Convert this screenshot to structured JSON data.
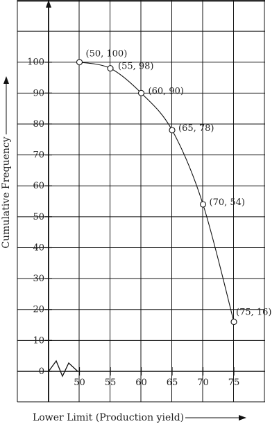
{
  "chart_data": {
    "type": "line",
    "title": "",
    "xlabel": "Lower Limit (Production yield)",
    "ylabel": "Cumulative Frequency",
    "x_ticks": [
      50,
      55,
      60,
      65,
      70,
      75
    ],
    "y_ticks": [
      0,
      10,
      20,
      30,
      40,
      50,
      60,
      70,
      80,
      90,
      100
    ],
    "xlim": [
      45,
      80
    ],
    "ylim": [
      0,
      110
    ],
    "grid": true,
    "series": [
      {
        "x": [
          50,
          55,
          60,
          65,
          70,
          75
        ],
        "y": [
          100,
          98,
          90,
          78,
          54,
          16
        ],
        "point_labels": [
          "(50, 100)",
          "(55, 98)",
          "(60, 90)",
          "(65, 78)",
          "(70, 54)",
          "(75, 16)"
        ]
      }
    ]
  }
}
